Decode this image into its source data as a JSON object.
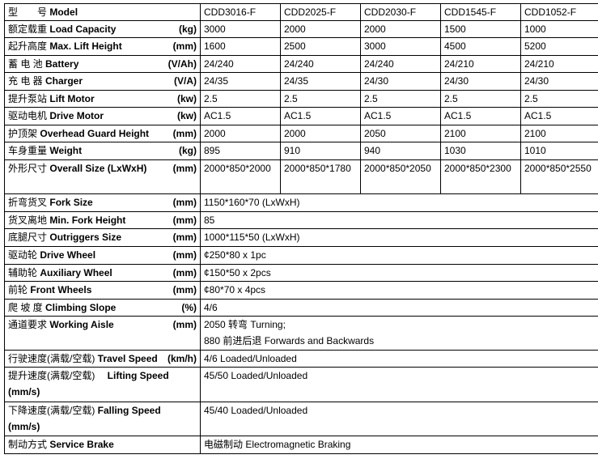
{
  "header": {
    "zh": "型　　号",
    "en": "Model",
    "models": [
      "CDD3016-F",
      "CDD2025-F",
      "CDD2030-F",
      "CDD1545-F",
      "CDD1052-F"
    ]
  },
  "spec_rows": [
    {
      "zh": "额定载重",
      "en": "Load Capacity",
      "unit": "(kg)",
      "values": [
        "3000",
        "2000",
        "2000",
        "1500",
        "1000"
      ]
    },
    {
      "zh": "起升高度",
      "en": "Max. Lift Height",
      "unit": "(mm)",
      "values": [
        "1600",
        "2500",
        "3000",
        "4500",
        "5200"
      ]
    },
    {
      "zh": "蓄 电 池",
      "en": "Battery",
      "unit": "(V/Ah)",
      "values": [
        "24/240",
        "24/240",
        "24/240",
        "24/210",
        "24/210"
      ]
    },
    {
      "zh": "充 电 器",
      "en": "Charger",
      "unit": "(V/A)",
      "values": [
        "24/35",
        "24/35",
        "24/30",
        "24/30",
        "24/30"
      ]
    },
    {
      "zh": "提升泵站",
      "en": "Lift Motor",
      "unit": "(kw)",
      "values": [
        "2.5",
        "2.5",
        "2.5",
        "2.5",
        "2.5"
      ]
    },
    {
      "zh": "驱动电机",
      "en": "Drive Motor",
      "unit": "(kw)",
      "values": [
        "AC1.5",
        "AC1.5",
        "AC1.5",
        "AC1.5",
        "AC1.5"
      ]
    },
    {
      "zh": "护顶架",
      "en": "Overhead Guard Height",
      "unit": "(mm)",
      "values": [
        "2000",
        "2000",
        "2050",
        "2100",
        "2100"
      ]
    },
    {
      "zh": "车身重量",
      "en": "Weight",
      "unit": "(kg)",
      "values": [
        "895",
        "910",
        "940",
        "1030",
        "1010"
      ]
    },
    {
      "zh": "外形尺寸",
      "en": "Overall Size (LxWxH)",
      "unit": "(mm)",
      "values": [
        "2000*850*2000",
        "2000*850*1780",
        "2000*850*2050",
        "2000*850*2300",
        "2000*850*2550"
      ]
    }
  ],
  "common_rows": [
    {
      "zh": "折弯货叉",
      "en": "Fork Size",
      "unit": "(mm)",
      "value": "1150*160*70 (LxWxH)"
    },
    {
      "zh": "货叉离地",
      "en": "Min. Fork Height",
      "unit": "(mm)",
      "value": "85"
    },
    {
      "zh": "底腿尺寸",
      "en": " Outriggers Size",
      "unit": "(mm)",
      "value": "1000*115*50 (LxWxH)"
    },
    {
      "zh": "驱动轮",
      "en": " Drive Wheel",
      "unit": "(mm)",
      "value": "¢250*80 x 1pc"
    },
    {
      "zh": "辅助轮",
      "en": " Auxiliary Wheel",
      "unit": "(mm)",
      "value": "¢150*50 x 2pcs"
    },
    {
      "zh": "前轮",
      "en": "Front Wheels",
      "unit": "(mm)",
      "value": "¢80*70 x 4pcs"
    },
    {
      "zh": "爬 坡 度",
      "en": " Climbing Slope",
      "unit": "(%)",
      "value": "4/6"
    },
    {
      "zh": "通道要求",
      "en": " Working Aisle",
      "unit": "(mm)",
      "value": "2050 转弯 Turning;",
      "value2": "880 前进后退 Forwards and Backwards"
    },
    {
      "zh": "行驶速度(满载/空载)",
      "en": "Travel Speed",
      "unit": "(km/h)",
      "value": "4/6 Loaded/Unloaded"
    },
    {
      "zh": "提升速度(满载/空载)",
      "en": "　Lifting Speed",
      "unit2": "(mm/s)",
      "value": "45/50 Loaded/Unloaded"
    },
    {
      "zh": "下降速度(满载/空载)",
      "en": "Falling Speed",
      "unit2": "(mm/s)",
      "value": "45/40 Loaded/Unloaded"
    },
    {
      "zh": "制动方式",
      "en": "Service Brake",
      "value": "电磁制动 Electromagnetic Braking"
    }
  ]
}
